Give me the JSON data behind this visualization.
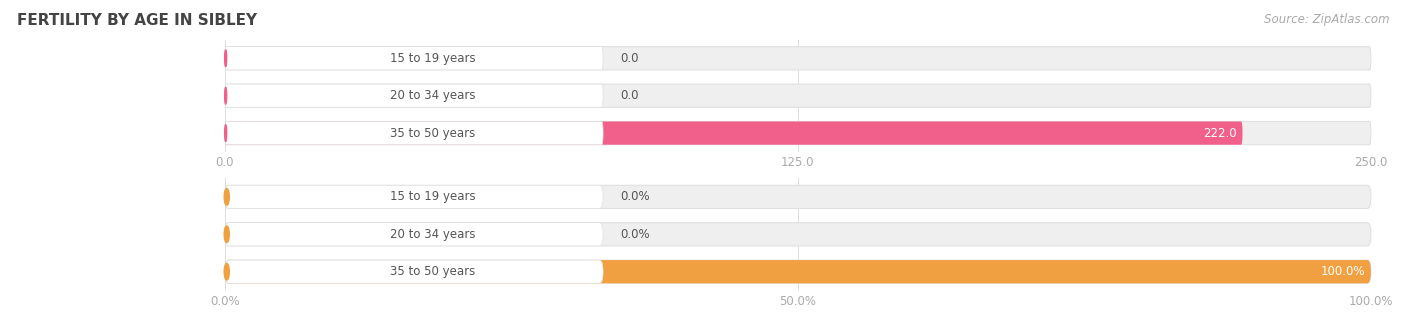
{
  "title": "FERTILITY BY AGE IN SIBLEY",
  "source": "Source: ZipAtlas.com",
  "top_chart": {
    "categories": [
      "15 to 19 years",
      "20 to 34 years",
      "35 to 50 years"
    ],
    "values": [
      0.0,
      0.0,
      222.0
    ],
    "bar_colors": [
      "#f5a0b8",
      "#f5a0b8",
      "#f0608a"
    ],
    "left_dot_colors": [
      "#f0608a",
      "#f0608a",
      "#f0608a"
    ],
    "xlim": [
      0,
      250.0
    ],
    "xticks": [
      0.0,
      125.0,
      250.0
    ],
    "xtick_labels": [
      "0.0",
      "125.0",
      "250.0"
    ],
    "value_labels": [
      "0.0",
      "0.0",
      "222.0"
    ]
  },
  "bottom_chart": {
    "categories": [
      "15 to 19 years",
      "20 to 34 years",
      "35 to 50 years"
    ],
    "values": [
      0.0,
      0.0,
      100.0
    ],
    "bar_colors": [
      "#f5c898",
      "#f5c898",
      "#f0a040"
    ],
    "left_dot_colors": [
      "#f0a040",
      "#f0a040",
      "#f0a040"
    ],
    "xlim": [
      0,
      100.0
    ],
    "xticks": [
      0.0,
      50.0,
      100.0
    ],
    "xtick_labels": [
      "0.0%",
      "50.0%",
      "100.0%"
    ],
    "value_labels": [
      "0.0%",
      "0.0%",
      "100.0%"
    ]
  },
  "track_color": "#efefef",
  "track_edge_color": "#e0e0e0",
  "label_bg_color": "#ffffff",
  "label_text_color": "#555555",
  "tick_color": "#aaaaaa",
  "title_color": "#444444",
  "source_color": "#aaaaaa",
  "bar_height": 0.62,
  "label_fontsize": 8.5,
  "title_fontsize": 11,
  "source_fontsize": 8.5,
  "value_fontsize": 8.5,
  "background_color": "#ffffff",
  "grid_color": "#dddddd"
}
